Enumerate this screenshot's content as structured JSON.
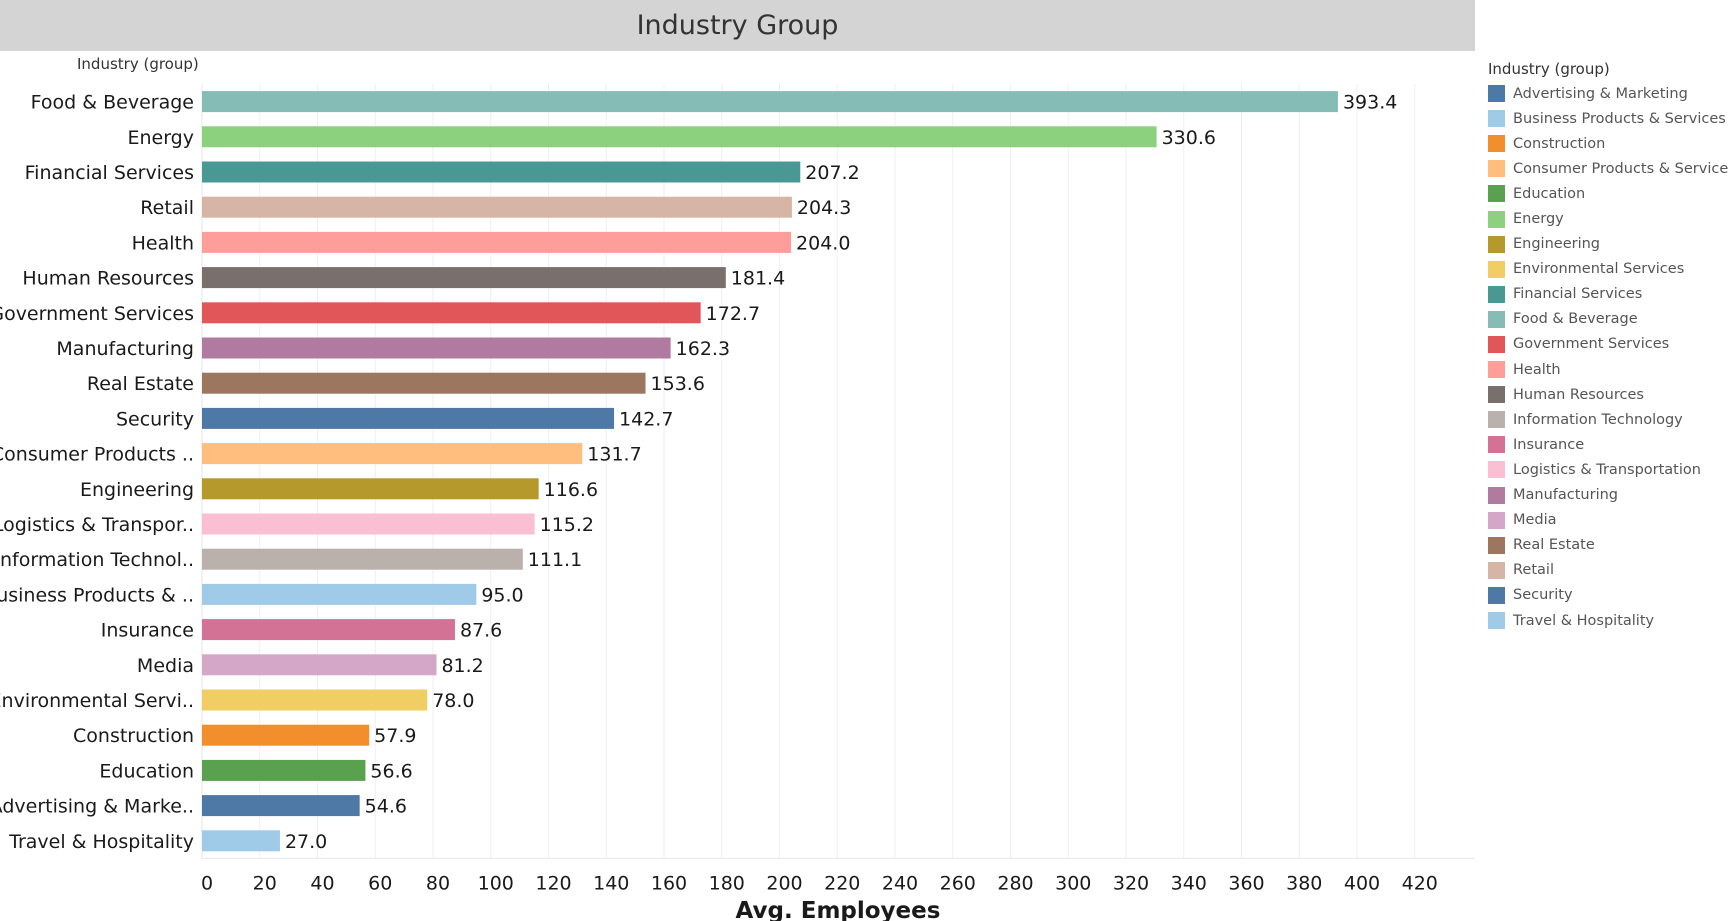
{
  "title": "Industry Group",
  "chart_data": {
    "type": "bar",
    "orientation": "horizontal",
    "title": "Industry Group",
    "row_header": "Industry (group)",
    "xlabel": "Avg. Employees",
    "ylabel": "Industry (group)",
    "xlim": [
      0,
      430
    ],
    "xticks": [
      0,
      20,
      40,
      60,
      80,
      100,
      120,
      140,
      160,
      180,
      200,
      220,
      240,
      260,
      280,
      300,
      320,
      340,
      360,
      380,
      400,
      420
    ],
    "grid": true,
    "categories": [
      "Food & Beverage",
      "Energy",
      "Financial Services",
      "Retail",
      "Health",
      "Human Resources",
      "Government Services",
      "Manufacturing",
      "Real Estate",
      "Security",
      "Consumer Products ..",
      "Engineering",
      "Logistics & Transpor..",
      "Information Technol..",
      "Business Products & ..",
      "Insurance",
      "Media",
      "Environmental Servi..",
      "Construction",
      "Education",
      "Advertising & Marke..",
      "Travel & Hospitality"
    ],
    "values": [
      393.4,
      330.6,
      207.2,
      204.3,
      204.0,
      181.4,
      172.7,
      162.3,
      153.6,
      142.7,
      131.7,
      116.6,
      115.2,
      111.1,
      95.0,
      87.6,
      81.2,
      78.0,
      57.9,
      56.6,
      54.6,
      27.0
    ],
    "value_labels": [
      "393.4",
      "330.6",
      "207.2",
      "204.3",
      "204.0",
      "181.4",
      "172.7",
      "162.3",
      "153.6",
      "142.7",
      "131.7",
      "116.6",
      "115.2",
      "111.1",
      "95.0",
      "87.6",
      "81.2",
      "78.0",
      "57.9",
      "56.6",
      "54.6",
      "27.0"
    ],
    "colors": [
      "#86bcb6",
      "#8cd17d",
      "#499894",
      "#d7b5a6",
      "#ff9d9a",
      "#79706e",
      "#e15759",
      "#b07aa1",
      "#9d7660",
      "#4e79a7",
      "#ffbe7d",
      "#b6992d",
      "#fabfd2",
      "#bab0ac",
      "#a0cbe8",
      "#d37295",
      "#d4a6c8",
      "#f1ce63",
      "#f28e2b",
      "#59a14f",
      "#4e79a7",
      "#a0cbe8"
    ]
  },
  "legend": {
    "title": "Industry (group)",
    "items": [
      {
        "label": "Advertising & Marketing",
        "color": "#4e79a7"
      },
      {
        "label": "Business Products & Services",
        "color": "#a0cbe8"
      },
      {
        "label": "Construction",
        "color": "#f28e2b"
      },
      {
        "label": "Consumer Products & Services",
        "color": "#ffbe7d"
      },
      {
        "label": "Education",
        "color": "#59a14f"
      },
      {
        "label": "Energy",
        "color": "#8cd17d"
      },
      {
        "label": "Engineering",
        "color": "#b6992d"
      },
      {
        "label": "Environmental Services",
        "color": "#f1ce63"
      },
      {
        "label": "Financial Services",
        "color": "#499894"
      },
      {
        "label": "Food & Beverage",
        "color": "#86bcb6"
      },
      {
        "label": "Government Services",
        "color": "#e15759"
      },
      {
        "label": "Health",
        "color": "#ff9d9a"
      },
      {
        "label": "Human Resources",
        "color": "#79706e"
      },
      {
        "label": "Information Technology",
        "color": "#bab0ac"
      },
      {
        "label": "Insurance",
        "color": "#d37295"
      },
      {
        "label": "Logistics & Transportation",
        "color": "#fabfd2"
      },
      {
        "label": "Manufacturing",
        "color": "#b07aa1"
      },
      {
        "label": "Media",
        "color": "#d4a6c8"
      },
      {
        "label": "Real Estate",
        "color": "#9d7660"
      },
      {
        "label": "Retail",
        "color": "#d7b5a6"
      },
      {
        "label": "Security",
        "color": "#4e79a7"
      },
      {
        "label": "Travel & Hospitality",
        "color": "#a0cbe8"
      }
    ]
  }
}
